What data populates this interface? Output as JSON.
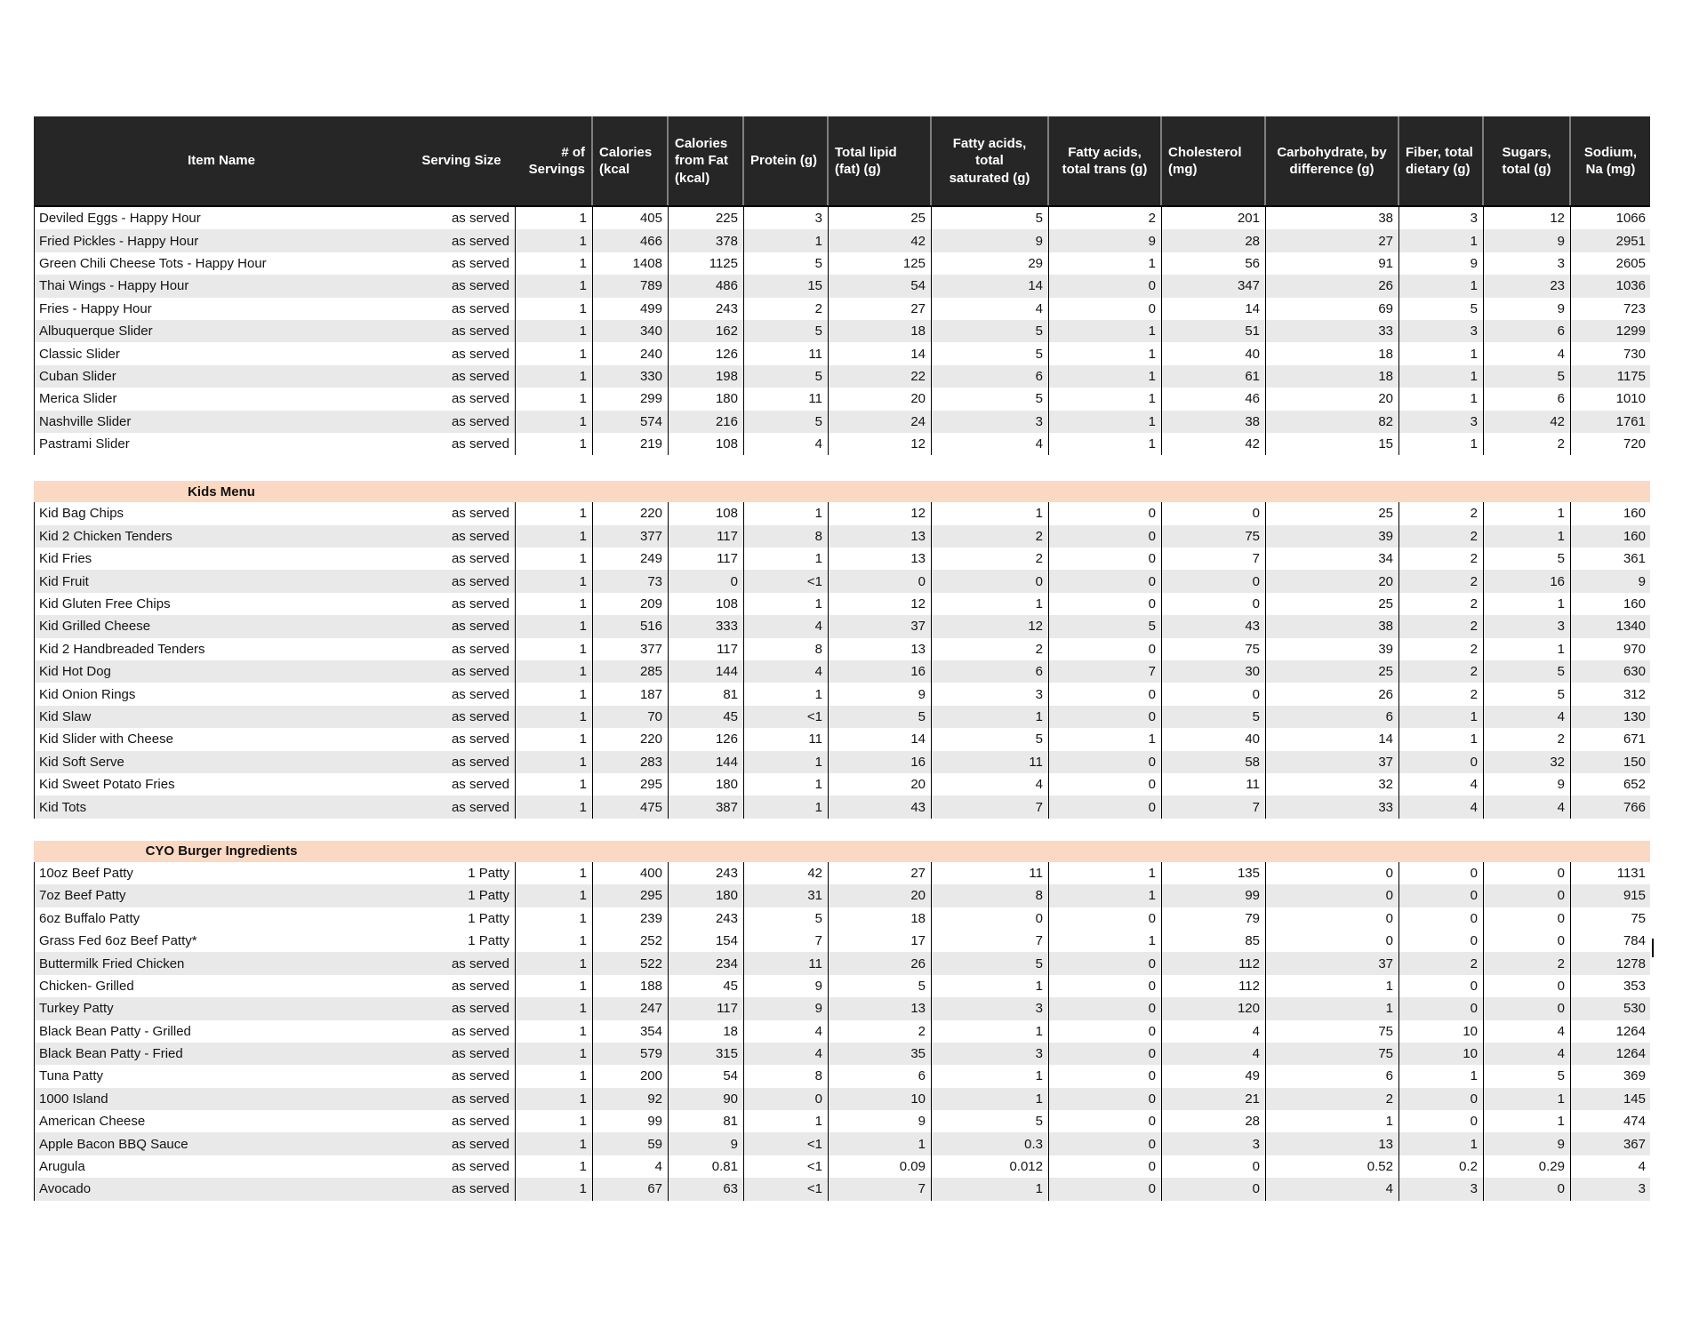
{
  "table": {
    "header_labels": [
      "Item Name",
      "Serving Size",
      "# of\nServings",
      "Calories\n(kcal",
      "Calories\nfrom Fat\n(kcal)",
      "Protein (g)",
      "Total lipid\n(fat) (g)",
      "Fatty acids, total\nsaturated (g)",
      "Fatty acids,\ntotal trans (g)",
      "Cholesterol\n(mg)",
      "Carbohydrate, by\ndifference (g)",
      "Fiber, total\ndietary (g)",
      "Sugars,\ntotal (g)",
      "Sodium,\nNa (mg)"
    ],
    "sections": [
      {
        "title": "",
        "rows": [
          {
            "item": "Deviled Eggs - Happy Hour",
            "serving_size": "as served",
            "shaded": false,
            "values": [
              "1",
              "405",
              "225",
              "3",
              "25",
              "5",
              "2",
              "201",
              "38",
              "3",
              "12",
              "1066"
            ]
          },
          {
            "item": "Fried Pickles - Happy Hour",
            "serving_size": "as served",
            "shaded": true,
            "values": [
              "1",
              "466",
              "378",
              "1",
              "42",
              "9",
              "9",
              "28",
              "27",
              "1",
              "9",
              "2951"
            ]
          },
          {
            "item": "Green Chili Cheese Tots - Happy Hour",
            "serving_size": "as served",
            "shaded": false,
            "values": [
              "1",
              "1408",
              "1125",
              "5",
              "125",
              "29",
              "1",
              "56",
              "91",
              "9",
              "3",
              "2605"
            ]
          },
          {
            "item": "Thai Wings - Happy Hour",
            "serving_size": "as served",
            "shaded": true,
            "values": [
              "1",
              "789",
              "486",
              "15",
              "54",
              "14",
              "0",
              "347",
              "26",
              "1",
              "23",
              "1036"
            ]
          },
          {
            "item": "Fries - Happy Hour",
            "serving_size": "as served",
            "shaded": false,
            "values": [
              "1",
              "499",
              "243",
              "2",
              "27",
              "4",
              "0",
              "14",
              "69",
              "5",
              "9",
              "723"
            ]
          },
          {
            "item": "Albuquerque Slider",
            "serving_size": "as served",
            "shaded": true,
            "values": [
              "1",
              "340",
              "162",
              "5",
              "18",
              "5",
              "1",
              "51",
              "33",
              "3",
              "6",
              "1299"
            ]
          },
          {
            "item": "Classic Slider",
            "serving_size": "as served",
            "shaded": false,
            "values": [
              "1",
              "240",
              "126",
              "11",
              "14",
              "5",
              "1",
              "40",
              "18",
              "1",
              "4",
              "730"
            ]
          },
          {
            "item": "Cuban Slider",
            "serving_size": "as served",
            "shaded": true,
            "values": [
              "1",
              "330",
              "198",
              "5",
              "22",
              "6",
              "1",
              "61",
              "18",
              "1",
              "5",
              "1175"
            ]
          },
          {
            "item": "Merica Slider",
            "serving_size": "as served",
            "shaded": false,
            "values": [
              "1",
              "299",
              "180",
              "11",
              "20",
              "5",
              "1",
              "46",
              "20",
              "1",
              "6",
              "1010"
            ]
          },
          {
            "item": "Nashville Slider",
            "serving_size": "as served",
            "shaded": true,
            "values": [
              "1",
              "574",
              "216",
              "5",
              "24",
              "3",
              "1",
              "38",
              "82",
              "3",
              "42",
              "1761"
            ]
          },
          {
            "item": "Pastrami Slider",
            "serving_size": "as served",
            "shaded": false,
            "values": [
              "1",
              "219",
              "108",
              "4",
              "12",
              "4",
              "1",
              "42",
              "15",
              "1",
              "2",
              "720"
            ]
          }
        ]
      },
      {
        "title": "Kids Menu",
        "rows": [
          {
            "item": "Kid Bag Chips",
            "serving_size": "as served",
            "shaded": false,
            "values": [
              "1",
              "220",
              "108",
              "1",
              "12",
              "1",
              "0",
              "0",
              "25",
              "2",
              "1",
              "160"
            ]
          },
          {
            "item": "Kid 2 Chicken Tenders",
            "serving_size": "as served",
            "shaded": true,
            "values": [
              "1",
              "377",
              "117",
              "8",
              "13",
              "2",
              "0",
              "75",
              "39",
              "2",
              "1",
              "160"
            ]
          },
          {
            "item": "Kid Fries",
            "serving_size": "as served",
            "shaded": false,
            "values": [
              "1",
              "249",
              "117",
              "1",
              "13",
              "2",
              "0",
              "7",
              "34",
              "2",
              "5",
              "361"
            ]
          },
          {
            "item": "Kid Fruit",
            "serving_size": "as served",
            "shaded": true,
            "values": [
              "1",
              "73",
              "0",
              "<1",
              "0",
              "0",
              "0",
              "0",
              "20",
              "2",
              "16",
              "9"
            ]
          },
          {
            "item": "Kid Gluten Free Chips",
            "serving_size": "as served",
            "shaded": false,
            "values": [
              "1",
              "209",
              "108",
              "1",
              "12",
              "1",
              "0",
              "0",
              "25",
              "2",
              "1",
              "160"
            ]
          },
          {
            "item": "Kid Grilled Cheese",
            "serving_size": "as served",
            "shaded": true,
            "values": [
              "1",
              "516",
              "333",
              "4",
              "37",
              "12",
              "5",
              "43",
              "38",
              "2",
              "3",
              "1340"
            ]
          },
          {
            "item": "Kid 2 Handbreaded Tenders",
            "serving_size": "as served",
            "shaded": false,
            "values": [
              "1",
              "377",
              "117",
              "8",
              "13",
              "2",
              "0",
              "75",
              "39",
              "2",
              "1",
              "970"
            ]
          },
          {
            "item": "Kid Hot Dog",
            "serving_size": "as served",
            "shaded": true,
            "values": [
              "1",
              "285",
              "144",
              "4",
              "16",
              "6",
              "7",
              "30",
              "25",
              "2",
              "5",
              "630"
            ]
          },
          {
            "item": "Kid Onion Rings",
            "serving_size": "as served",
            "shaded": false,
            "values": [
              "1",
              "187",
              "81",
              "1",
              "9",
              "3",
              "0",
              "0",
              "26",
              "2",
              "5",
              "312"
            ]
          },
          {
            "item": "Kid Slaw",
            "serving_size": "as served",
            "shaded": true,
            "values": [
              "1",
              "70",
              "45",
              "<1",
              "5",
              "1",
              "0",
              "5",
              "6",
              "1",
              "4",
              "130"
            ]
          },
          {
            "item": "Kid Slider with Cheese",
            "serving_size": "as served",
            "shaded": false,
            "values": [
              "1",
              "220",
              "126",
              "11",
              "14",
              "5",
              "1",
              "40",
              "14",
              "1",
              "2",
              "671"
            ]
          },
          {
            "item": "Kid Soft Serve",
            "serving_size": "as served",
            "shaded": true,
            "values": [
              "1",
              "283",
              "144",
              "1",
              "16",
              "11",
              "0",
              "58",
              "37",
              "0",
              "32",
              "150"
            ]
          },
          {
            "item": "Kid Sweet Potato Fries",
            "serving_size": "as served",
            "shaded": false,
            "values": [
              "1",
              "295",
              "180",
              "1",
              "20",
              "4",
              "0",
              "11",
              "32",
              "4",
              "9",
              "652"
            ]
          },
          {
            "item": "Kid Tots",
            "serving_size": "as served",
            "shaded": true,
            "values": [
              "1",
              "475",
              "387",
              "1",
              "43",
              "7",
              "0",
              "7",
              "33",
              "4",
              "4",
              "766"
            ]
          }
        ]
      },
      {
        "title": "CYO Burger Ingredients",
        "rows": [
          {
            "item": "10oz Beef Patty",
            "serving_size": "1 Patty",
            "shaded": false,
            "values": [
              "1",
              "400",
              "243",
              "42",
              "27",
              "11",
              "1",
              "135",
              "0",
              "0",
              "0",
              "1131"
            ]
          },
          {
            "item": "7oz Beef Patty",
            "serving_size": "1 Patty",
            "shaded": true,
            "values": [
              "1",
              "295",
              "180",
              "31",
              "20",
              "8",
              "1",
              "99",
              "0",
              "0",
              "0",
              "915"
            ]
          },
          {
            "item": "6oz Buffalo Patty",
            "serving_size": "1 Patty",
            "shaded": false,
            "values": [
              "1",
              "239",
              "243",
              "5",
              "18",
              "0",
              "0",
              "79",
              "0",
              "0",
              "0",
              "75"
            ]
          },
          {
            "item": "Grass Fed 6oz Beef Patty*",
            "serving_size": "1 Patty",
            "shaded": false,
            "values": [
              "1",
              "252",
              "154",
              "7",
              "17",
              "7",
              "1",
              "85",
              "0",
              "0",
              "0",
              "784"
            ]
          },
          {
            "item": "Buttermilk Fried Chicken",
            "serving_size": "as served",
            "shaded": true,
            "values": [
              "1",
              "522",
              "234",
              "11",
              "26",
              "5",
              "0",
              "112",
              "37",
              "2",
              "2",
              "1278"
            ]
          },
          {
            "item": "Chicken- Grilled",
            "serving_size": "as served",
            "shaded": false,
            "values": [
              "1",
              "188",
              "45",
              "9",
              "5",
              "1",
              "0",
              "112",
              "1",
              "0",
              "0",
              "353"
            ]
          },
          {
            "item": "Turkey Patty",
            "serving_size": "as served",
            "shaded": true,
            "values": [
              "1",
              "247",
              "117",
              "9",
              "13",
              "3",
              "0",
              "120",
              "1",
              "0",
              "0",
              "530"
            ]
          },
          {
            "item": "Black Bean Patty - Grilled",
            "serving_size": "as served",
            "shaded": false,
            "values": [
              "1",
              "354",
              "18",
              "4",
              "2",
              "1",
              "0",
              "4",
              "75",
              "10",
              "4",
              "1264"
            ]
          },
          {
            "item": "Black Bean Patty - Fried",
            "serving_size": "as served",
            "shaded": true,
            "values": [
              "1",
              "579",
              "315",
              "4",
              "35",
              "3",
              "0",
              "4",
              "75",
              "10",
              "4",
              "1264"
            ]
          },
          {
            "item": "Tuna Patty",
            "serving_size": "as served",
            "shaded": false,
            "values": [
              "1",
              "200",
              "54",
              "8",
              "6",
              "1",
              "0",
              "49",
              "6",
              "1",
              "5",
              "369"
            ]
          },
          {
            "item": "1000 Island",
            "serving_size": "as served",
            "shaded": true,
            "values": [
              "1",
              "92",
              "90",
              "0",
              "10",
              "1",
              "0",
              "21",
              "2",
              "0",
              "1",
              "145"
            ]
          },
          {
            "item": "American Cheese",
            "serving_size": "as served",
            "shaded": false,
            "values": [
              "1",
              "99",
              "81",
              "1",
              "9",
              "5",
              "0",
              "28",
              "1",
              "0",
              "1",
              "474"
            ]
          },
          {
            "item": "Apple Bacon BBQ Sauce",
            "serving_size": "as served",
            "shaded": true,
            "values": [
              "1",
              "59",
              "9",
              "<1",
              "1",
              "0.3",
              "0",
              "3",
              "13",
              "1",
              "9",
              "367"
            ]
          },
          {
            "item": "Arugula",
            "serving_size": "as served",
            "shaded": false,
            "values": [
              "1",
              "4",
              "0.81",
              "<1",
              "0.09",
              "0.012",
              "0",
              "0",
              "0.52",
              "0.2",
              "0.29",
              "4"
            ]
          },
          {
            "item": "Avocado",
            "serving_size": "as served",
            "shaded": true,
            "values": [
              "1",
              "67",
              "63",
              "<1",
              "7",
              "1",
              "0",
              "0",
              "4",
              "3",
              "0",
              "3"
            ]
          }
        ]
      }
    ]
  },
  "colors": {
    "header_bg": "#262626",
    "header_text": "#ffffff",
    "row_alt": "#e9e9e9",
    "section_band": "#fbd8c2",
    "grid_line": "#000000",
    "header_divider": "#7f7f7f"
  }
}
